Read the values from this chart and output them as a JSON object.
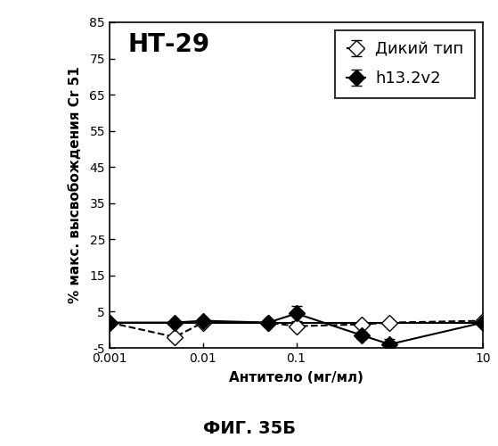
{
  "title": "НТ-29",
  "xlabel": "Антитело (мг/мл)",
  "ylabel": "% макс. высвобождения Cr 51",
  "caption": "ФИГ. 35Б",
  "legend_wild": "Дикий тип",
  "legend_h13": "h13.2v2",
  "ylim": [
    -5,
    85
  ],
  "yticks": [
    -5,
    5,
    15,
    25,
    35,
    45,
    55,
    65,
    75,
    85
  ],
  "ytick_labels": [
    "-5",
    "5",
    "15",
    "25",
    "35",
    "45",
    "55",
    "65",
    "75",
    "85"
  ],
  "wild_x": [
    0.001,
    0.005,
    0.01,
    0.05,
    0.1,
    0.5,
    1.0,
    10.0
  ],
  "wild_y": [
    2.0,
    -2.0,
    2.0,
    2.0,
    1.0,
    1.5,
    2.0,
    2.5
  ],
  "wild_yerr": [
    0.3,
    0.3,
    0.3,
    0.3,
    0.5,
    0.3,
    0.5,
    0.5
  ],
  "h13_x": [
    0.001,
    0.005,
    0.01,
    0.05,
    0.1,
    0.5,
    1.0,
    10.0
  ],
  "h13_y": [
    2.0,
    2.0,
    2.5,
    2.0,
    4.5,
    -1.5,
    -4.0,
    2.0
  ],
  "h13_yerr": [
    0.3,
    0.3,
    0.3,
    0.3,
    2.0,
    1.0,
    1.5,
    0.8
  ],
  "background_color": "#ffffff",
  "title_fontsize": 20,
  "label_fontsize": 11,
  "tick_fontsize": 10,
  "legend_fontsize": 13,
  "caption_fontsize": 14
}
